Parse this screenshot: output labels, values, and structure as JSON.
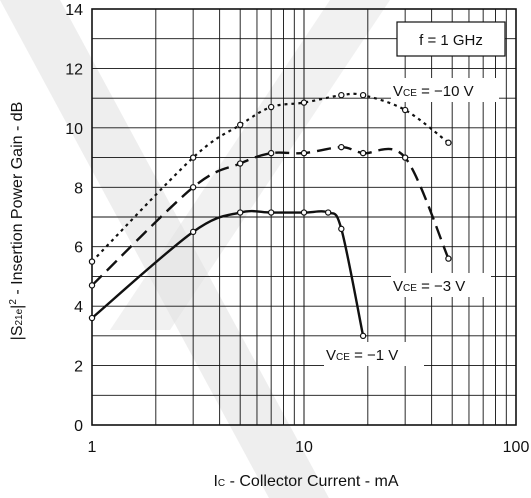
{
  "chart_data": {
    "type": "line",
    "x_scale": "log",
    "xlim": [
      1,
      100
    ],
    "ylim": [
      0,
      14
    ],
    "x_ticks": [
      "1",
      "10",
      "100"
    ],
    "y_ticks": [
      "0",
      "2",
      "4",
      "6",
      "8",
      "10",
      "12",
      "14"
    ],
    "grid": true,
    "xlabel": {
      "symbol": "I",
      "subscript": "C",
      "text": " - Collector Current - mA"
    },
    "ylabel": {
      "prefix": "|S",
      "subscript": "21e",
      "middle": "|",
      "superscript": "2",
      "text": " - Insertion Power Gain - dB"
    },
    "condition": "f = 1 GHz",
    "series": [
      {
        "label_symbol": "V",
        "label_subscript": "CE",
        "label_value": " = −10 V",
        "style": "dotted",
        "points": [
          [
            1,
            5.5
          ],
          [
            3,
            9.0
          ],
          [
            5,
            10.1
          ],
          [
            7,
            10.7
          ],
          [
            10,
            10.85
          ],
          [
            15,
            11.1
          ],
          [
            19,
            11.1
          ],
          [
            30,
            10.6
          ],
          [
            48,
            9.5
          ]
        ]
      },
      {
        "label_symbol": "V",
        "label_subscript": "CE",
        "label_value": " = −3 V",
        "style": "dashed",
        "points": [
          [
            1,
            4.7
          ],
          [
            3,
            8.0
          ],
          [
            5,
            8.8
          ],
          [
            7,
            9.15
          ],
          [
            10,
            9.15
          ],
          [
            15,
            9.35
          ],
          [
            19,
            9.15
          ],
          [
            30,
            9.0
          ],
          [
            48,
            5.6
          ]
        ]
      },
      {
        "label_symbol": "V",
        "label_subscript": "CE",
        "label_value": " = −1 V",
        "style": "solid",
        "points": [
          [
            1,
            3.6
          ],
          [
            3,
            6.5
          ],
          [
            5,
            7.15
          ],
          [
            7,
            7.15
          ],
          [
            10,
            7.15
          ],
          [
            13,
            7.15
          ],
          [
            15,
            6.6
          ],
          [
            19,
            3.0
          ]
        ]
      }
    ],
    "watermark_color": "#e0e0e0"
  }
}
